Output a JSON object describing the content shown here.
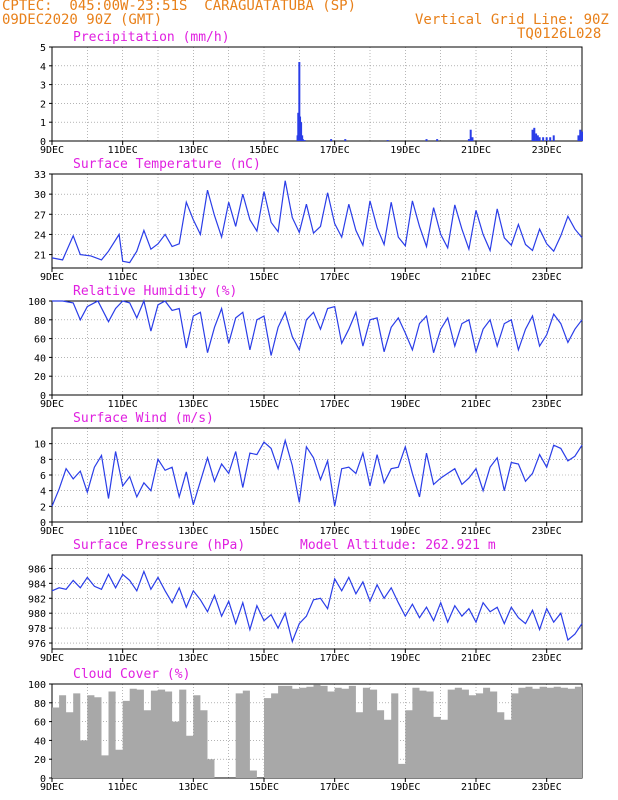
{
  "header": {
    "line1": "CPTEC:  045:00W-23:51S  CARAGUATATUBA (SP)",
    "line2": "09DEC2020 90Z (GMT)",
    "grid_note": "Vertical Grid Line: 90Z",
    "code": "TQ0126L028"
  },
  "colors": {
    "header": "#e8801a",
    "title": "#e020e0",
    "series": "#2a3de8",
    "cloud": "#a8a8a8",
    "grid": "#888888"
  },
  "chart_data": [
    {
      "type": "bar",
      "title": "Precipitation (mm/h)",
      "x_ticks": [
        "9DEC",
        "11DEC",
        "13DEC",
        "15DEC",
        "17DEC",
        "19DEC",
        "21DEC",
        "23DEC"
      ],
      "ylim": [
        0,
        5
      ],
      "y_ticks": [
        0,
        1,
        2,
        3,
        4,
        5
      ],
      "x": [
        15.95,
        15.97,
        16.0,
        16.02,
        16.05,
        16.08,
        16.1,
        16.15,
        16.9,
        17.3,
        18.5,
        19.6,
        19.9,
        20.8,
        20.85,
        20.9,
        22.6,
        22.65,
        22.7,
        22.75,
        22.8,
        22.9,
        23.0,
        23.1,
        23.2,
        23.9,
        23.95,
        24.0
      ],
      "values": [
        0.3,
        1.5,
        4.2,
        1.3,
        1.0,
        0.3,
        0.1,
        0.05,
        0.1,
        0.1,
        0.05,
        0.1,
        0.1,
        0.1,
        0.6,
        0.2,
        0.6,
        0.7,
        0.4,
        0.3,
        0.2,
        0.2,
        0.2,
        0.2,
        0.3,
        0.3,
        0.6,
        0.5
      ]
    },
    {
      "type": "line",
      "title": "Surface Temperature (nC)",
      "x_ticks": [
        "9DEC",
        "11DEC",
        "13DEC",
        "15DEC",
        "17DEC",
        "19DEC",
        "21DEC",
        "23DEC"
      ],
      "ylim": [
        19,
        33
      ],
      "y_ticks": [
        21,
        24,
        27,
        30,
        33
      ],
      "x": [
        9.0,
        9.3,
        9.6,
        9.8,
        10.1,
        10.4,
        10.6,
        10.9,
        11.0,
        11.2,
        11.4,
        11.6,
        11.8,
        12.0,
        12.2,
        12.4,
        12.6,
        12.8,
        13.0,
        13.2,
        13.4,
        13.6,
        13.8,
        14.0,
        14.2,
        14.4,
        14.6,
        14.8,
        15.0,
        15.2,
        15.4,
        15.6,
        15.8,
        16.0,
        16.2,
        16.4,
        16.6,
        16.8,
        17.0,
        17.2,
        17.4,
        17.6,
        17.8,
        18.0,
        18.2,
        18.4,
        18.6,
        18.8,
        19.0,
        19.2,
        19.4,
        19.6,
        19.8,
        20.0,
        20.2,
        20.4,
        20.6,
        20.8,
        21.0,
        21.2,
        21.4,
        21.6,
        21.8,
        22.0,
        22.2,
        22.4,
        22.6,
        22.8,
        23.0,
        23.2,
        23.4,
        23.6,
        23.8,
        24.0
      ],
      "values": [
        20.5,
        20.2,
        23.8,
        21.0,
        20.8,
        20.2,
        21.5,
        24.0,
        20.0,
        19.8,
        21.5,
        24.6,
        21.8,
        22.6,
        24.0,
        22.2,
        22.6,
        28.8,
        26.2,
        24.0,
        30.6,
        26.8,
        23.6,
        28.8,
        25.2,
        30.0,
        26.2,
        24.5,
        30.4,
        25.8,
        24.4,
        32.0,
        26.5,
        24.3,
        28.5,
        24.2,
        25.2,
        30.2,
        25.6,
        23.6,
        28.5,
        24.6,
        22.4,
        29.0,
        25.0,
        22.5,
        28.8,
        23.6,
        22.3,
        29.0,
        25.2,
        22.2,
        28.0,
        24.0,
        22.0,
        28.4,
        24.8,
        21.8,
        27.6,
        24.0,
        21.6,
        27.8,
        23.5,
        22.4,
        25.5,
        22.5,
        21.6,
        24.8,
        22.6,
        21.5,
        23.8,
        26.7,
        24.8,
        23.5
      ]
    },
    {
      "type": "line",
      "title": "Relative Humidity (%)",
      "x_ticks": [
        "9DEC",
        "11DEC",
        "13DEC",
        "15DEC",
        "17DEC",
        "19DEC",
        "21DEC",
        "23DEC"
      ],
      "ylim": [
        0,
        100
      ],
      "y_ticks": [
        0,
        20,
        40,
        60,
        80,
        100
      ],
      "x": [
        9.0,
        9.3,
        9.6,
        9.8,
        10.0,
        10.3,
        10.6,
        10.8,
        11.0,
        11.2,
        11.4,
        11.6,
        11.8,
        12.0,
        12.2,
        12.4,
        12.6,
        12.8,
        13.0,
        13.2,
        13.4,
        13.6,
        13.8,
        14.0,
        14.2,
        14.4,
        14.6,
        14.8,
        15.0,
        15.2,
        15.4,
        15.6,
        15.8,
        16.0,
        16.2,
        16.4,
        16.6,
        16.8,
        17.0,
        17.2,
        17.4,
        17.6,
        17.8,
        18.0,
        18.2,
        18.4,
        18.6,
        18.8,
        19.0,
        19.2,
        19.4,
        19.6,
        19.8,
        20.0,
        20.2,
        20.4,
        20.6,
        20.8,
        21.0,
        21.2,
        21.4,
        21.6,
        21.8,
        22.0,
        22.2,
        22.4,
        22.6,
        22.8,
        23.0,
        23.2,
        23.4,
        23.6,
        23.8,
        24.0
      ],
      "values": [
        100,
        100,
        98,
        80,
        94,
        100,
        78,
        92,
        100,
        98,
        82,
        100,
        68,
        96,
        100,
        90,
        92,
        50,
        84,
        88,
        45,
        72,
        92,
        55,
        82,
        88,
        48,
        80,
        84,
        42,
        72,
        88,
        62,
        48,
        80,
        88,
        70,
        92,
        94,
        55,
        70,
        88,
        52,
        80,
        82,
        46,
        72,
        82,
        66,
        48,
        76,
        84,
        45,
        70,
        82,
        52,
        76,
        80,
        46,
        70,
        80,
        52,
        76,
        80,
        48,
        70,
        84,
        52,
        64,
        86,
        76,
        56,
        70,
        80
      ]
    },
    {
      "type": "line",
      "title": "Surface Wind (m/s)",
      "x_ticks": [
        "9DEC",
        "11DEC",
        "13DEC",
        "15DEC",
        "17DEC",
        "19DEC",
        "21DEC",
        "23DEC"
      ],
      "ylim": [
        0,
        12
      ],
      "y_ticks": [
        0,
        2,
        4,
        6,
        8,
        10
      ],
      "x": [
        9.0,
        9.2,
        9.4,
        9.6,
        9.8,
        10.0,
        10.2,
        10.4,
        10.6,
        10.8,
        11.0,
        11.2,
        11.4,
        11.6,
        11.8,
        12.0,
        12.2,
        12.4,
        12.6,
        12.8,
        13.0,
        13.2,
        13.4,
        13.6,
        13.8,
        14.0,
        14.2,
        14.4,
        14.6,
        14.8,
        15.0,
        15.2,
        15.4,
        15.6,
        15.8,
        16.0,
        16.2,
        16.4,
        16.6,
        16.8,
        17.0,
        17.2,
        17.4,
        17.6,
        17.8,
        18.0,
        18.2,
        18.4,
        18.6,
        18.8,
        19.0,
        19.2,
        19.4,
        19.6,
        19.8,
        20.0,
        20.2,
        20.4,
        20.6,
        20.8,
        21.0,
        21.2,
        21.4,
        21.6,
        21.8,
        22.0,
        22.2,
        22.4,
        22.6,
        22.8,
        23.0,
        23.2,
        23.4,
        23.6,
        23.8,
        24.0
      ],
      "values": [
        2.0,
        4.2,
        6.8,
        5.5,
        6.5,
        3.8,
        7.0,
        8.5,
        3.0,
        9.0,
        4.6,
        5.8,
        3.2,
        5.0,
        4.0,
        8.0,
        6.6,
        7.0,
        3.2,
        6.4,
        2.2,
        5.2,
        8.2,
        5.2,
        7.4,
        6.2,
        9.0,
        4.4,
        8.8,
        8.6,
        10.2,
        9.4,
        6.8,
        10.4,
        7.2,
        2.5,
        9.6,
        8.2,
        5.4,
        7.8,
        2.0,
        6.8,
        7.0,
        6.2,
        8.8,
        4.6,
        8.6,
        5.0,
        6.8,
        7.0,
        9.6,
        6.2,
        3.2,
        8.8,
        4.8,
        5.6,
        6.2,
        6.8,
        4.8,
        5.6,
        6.8,
        4.0,
        7.0,
        8.2,
        4.0,
        7.6,
        7.4,
        5.2,
        6.2,
        8.6,
        7.0,
        9.8,
        9.4,
        7.8,
        8.4,
        9.8
      ]
    },
    {
      "type": "line",
      "title": "Surface Pressure (hPa)",
      "annotation": "Model Altitude: 262.921  m",
      "x_ticks": [
        "9DEC",
        "11DEC",
        "13DEC",
        "15DEC",
        "17DEC",
        "19DEC",
        "21DEC",
        "23DEC"
      ],
      "ylim": [
        975.2,
        987.8
      ],
      "y_ticks": [
        976,
        978,
        980,
        982,
        984,
        986
      ],
      "x": [
        9.0,
        9.2,
        9.4,
        9.6,
        9.8,
        10.0,
        10.2,
        10.4,
        10.6,
        10.8,
        11.0,
        11.2,
        11.4,
        11.6,
        11.8,
        12.0,
        12.2,
        12.4,
        12.6,
        12.8,
        13.0,
        13.2,
        13.4,
        13.6,
        13.8,
        14.0,
        14.2,
        14.4,
        14.6,
        14.8,
        15.0,
        15.2,
        15.4,
        15.6,
        15.8,
        16.0,
        16.2,
        16.4,
        16.6,
        16.8,
        17.0,
        17.2,
        17.4,
        17.6,
        17.8,
        18.0,
        18.2,
        18.4,
        18.6,
        18.8,
        19.0,
        19.2,
        19.4,
        19.6,
        19.8,
        20.0,
        20.2,
        20.4,
        20.6,
        20.8,
        21.0,
        21.2,
        21.4,
        21.6,
        21.8,
        22.0,
        22.2,
        22.4,
        22.6,
        22.8,
        23.0,
        23.2,
        23.4,
        23.6,
        23.8,
        24.0
      ],
      "values": [
        983.0,
        983.4,
        983.2,
        984.4,
        983.4,
        984.8,
        983.6,
        983.2,
        985.2,
        983.4,
        985.2,
        984.4,
        983.0,
        985.6,
        983.2,
        984.8,
        983.0,
        981.4,
        983.4,
        980.8,
        983.0,
        981.8,
        980.2,
        982.4,
        979.6,
        981.6,
        978.6,
        981.4,
        977.8,
        981.0,
        979.0,
        979.8,
        978.0,
        980.0,
        976.2,
        978.6,
        979.6,
        981.8,
        982.0,
        980.6,
        984.6,
        983.0,
        984.8,
        982.6,
        984.2,
        981.6,
        983.8,
        982.0,
        983.4,
        981.4,
        979.6,
        981.2,
        979.4,
        980.8,
        979.0,
        981.4,
        978.8,
        981.0,
        979.6,
        980.6,
        978.8,
        981.4,
        980.2,
        980.8,
        978.6,
        980.8,
        979.4,
        978.6,
        980.4,
        977.8,
        980.6,
        978.8,
        980.0,
        976.4,
        977.2,
        978.6
      ]
    },
    {
      "type": "area",
      "title": "Cloud Cover (%)",
      "x_ticks": [
        "9DEC",
        "11DEC",
        "13DEC",
        "15DEC",
        "17DEC",
        "19DEC",
        "21DEC",
        "23DEC"
      ],
      "ylim": [
        0,
        100
      ],
      "y_ticks": [
        0,
        20,
        40,
        60,
        80,
        100
      ],
      "x": [
        9.0,
        9.2,
        9.4,
        9.6,
        9.8,
        10.0,
        10.2,
        10.4,
        10.6,
        10.8,
        11.0,
        11.2,
        11.4,
        11.6,
        11.8,
        12.0,
        12.2,
        12.4,
        12.6,
        12.8,
        13.0,
        13.2,
        13.4,
        13.6,
        13.8,
        14.0,
        14.2,
        14.4,
        14.6,
        14.8,
        15.0,
        15.2,
        15.4,
        15.6,
        15.8,
        16.0,
        16.2,
        16.4,
        16.6,
        16.8,
        17.0,
        17.2,
        17.4,
        17.6,
        17.8,
        18.0,
        18.2,
        18.4,
        18.6,
        18.8,
        19.0,
        19.2,
        19.4,
        19.6,
        19.8,
        20.0,
        20.2,
        20.4,
        20.6,
        20.8,
        21.0,
        21.2,
        21.4,
        21.6,
        21.8,
        22.0,
        22.2,
        22.4,
        22.6,
        22.8,
        23.0,
        23.2,
        23.4,
        23.6,
        23.8,
        24.0
      ],
      "values": [
        75,
        88,
        70,
        90,
        40,
        88,
        86,
        24,
        92,
        30,
        82,
        95,
        94,
        72,
        93,
        94,
        92,
        60,
        94,
        45,
        88,
        72,
        20,
        0,
        0,
        0,
        90,
        93,
        8,
        0,
        85,
        90,
        98,
        98,
        95,
        96,
        97,
        99,
        98,
        92,
        96,
        95,
        98,
        70,
        96,
        94,
        72,
        62,
        90,
        15,
        72,
        96,
        93,
        92,
        65,
        62,
        94,
        96,
        94,
        88,
        90,
        96,
        92,
        70,
        62,
        90,
        96,
        97,
        95,
        97,
        96,
        97,
        96,
        95,
        97,
        96
      ]
    }
  ]
}
